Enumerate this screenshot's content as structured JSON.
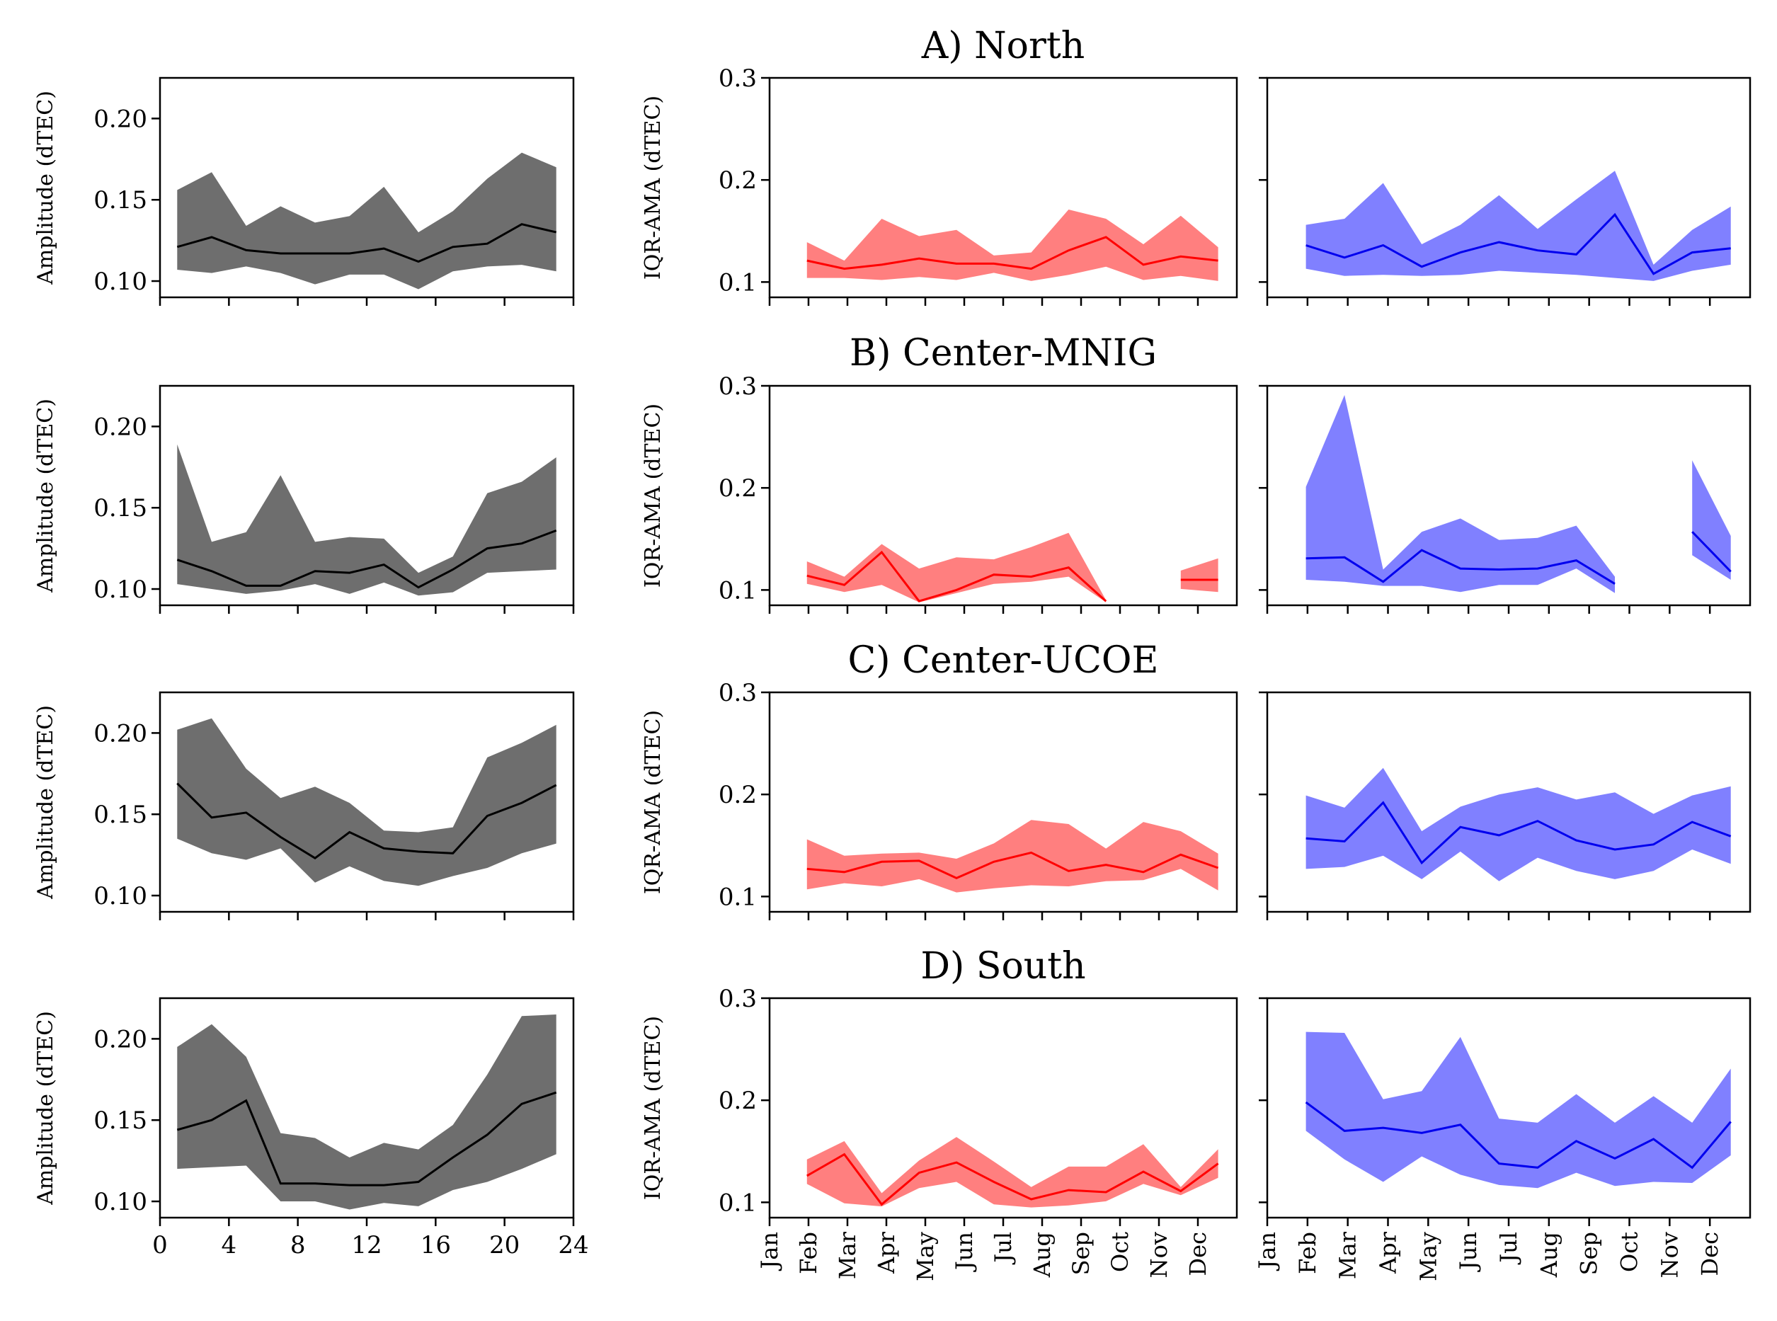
{
  "chart_data": {
    "type": "area",
    "description_series": "Each panel: line = median, shaded band = interquartile range",
    "left_axes": {
      "ylabel": "Amplitude (dTEC)",
      "yticks": [
        "0.10",
        "0.15",
        "0.20"
      ],
      "ylim": [
        0.09,
        0.225
      ],
      "xlim": [
        0,
        24
      ],
      "xticks": [
        "0",
        "4",
        "8",
        "12",
        "16",
        "20",
        "24"
      ],
      "x": [
        1,
        3,
        5,
        7,
        9,
        11,
        13,
        15,
        17,
        19,
        21,
        23
      ],
      "color": "#000000",
      "fill": "#6e6e6e"
    },
    "month_axes": {
      "ylabel": "IQR-AMA (dTEC)",
      "yticks": [
        "0.1",
        "0.2",
        "0.3"
      ],
      "ylim": [
        0.085,
        0.3
      ],
      "months": [
        "Jan",
        "Feb",
        "Mar",
        "Apr",
        "May",
        "Jun",
        "Jul",
        "Aug",
        "Sep",
        "Oct",
        "Nov",
        "Dec"
      ],
      "x": [
        1,
        2,
        3,
        4,
        5,
        6,
        7,
        8,
        9,
        10,
        11,
        12
      ],
      "middle_color": "#ff0000",
      "middle_fill": "#ff7f7f",
      "right_color": "#0000ee",
      "right_fill": "#8080ff"
    },
    "rows": [
      {
        "title": "A) North",
        "left": {
          "median": [
            0.121,
            0.127,
            0.119,
            0.117,
            0.117,
            0.117,
            0.12,
            0.112,
            0.121,
            0.123,
            0.135,
            0.13
          ],
          "q1": [
            0.107,
            0.105,
            0.109,
            0.105,
            0.098,
            0.104,
            0.104,
            0.095,
            0.106,
            0.109,
            0.11,
            0.106
          ],
          "q3": [
            0.156,
            0.167,
            0.134,
            0.146,
            0.136,
            0.14,
            0.158,
            0.13,
            0.143,
            0.163,
            0.179,
            0.17
          ]
        },
        "middle": {
          "median": [
            0.121,
            0.113,
            0.117,
            0.123,
            0.118,
            0.118,
            0.113,
            0.131,
            0.144,
            0.117,
            0.125,
            0.121
          ],
          "q1": [
            0.104,
            0.104,
            0.102,
            0.105,
            0.102,
            0.109,
            0.101,
            0.107,
            0.115,
            0.102,
            0.106,
            0.101
          ],
          "q3": [
            0.139,
            0.121,
            0.162,
            0.145,
            0.151,
            0.126,
            0.129,
            0.171,
            0.162,
            0.137,
            0.165,
            0.134
          ]
        },
        "right": {
          "median": [
            0.136,
            0.124,
            0.136,
            0.115,
            0.129,
            0.139,
            0.131,
            0.127,
            0.166,
            0.108,
            0.129,
            0.133
          ],
          "q1": [
            0.113,
            0.106,
            0.107,
            0.106,
            0.107,
            0.111,
            0.109,
            0.107,
            0.104,
            0.101,
            0.111,
            0.117
          ],
          "q3": [
            0.156,
            0.162,
            0.197,
            0.137,
            0.156,
            0.185,
            0.152,
            0.181,
            0.209,
            0.117,
            0.151,
            0.174
          ]
        }
      },
      {
        "title": "B) Center-MNIG",
        "left": {
          "median": [
            0.118,
            0.111,
            0.102,
            0.102,
            0.111,
            0.11,
            0.115,
            0.101,
            0.112,
            0.125,
            0.128,
            0.136
          ],
          "q1": [
            0.103,
            0.1,
            0.097,
            0.099,
            0.103,
            0.097,
            0.104,
            0.096,
            0.098,
            0.11,
            0.111,
            0.112
          ],
          "q3": [
            0.189,
            0.129,
            0.135,
            0.17,
            0.129,
            0.132,
            0.131,
            0.11,
            0.12,
            0.159,
            0.166,
            0.181
          ]
        },
        "middle": {
          "median": [
            0.114,
            0.105,
            0.137,
            0.089,
            0.1,
            0.115,
            0.113,
            0.122,
            0.089,
            null,
            0.11,
            0.11
          ],
          "q1": [
            0.106,
            0.098,
            0.105,
            0.088,
            0.097,
            0.106,
            0.108,
            0.113,
            0.088,
            null,
            0.101,
            0.098
          ],
          "q3": [
            0.128,
            0.113,
            0.145,
            0.121,
            0.132,
            0.13,
            0.142,
            0.156,
            0.09,
            null,
            0.119,
            0.131
          ]
        },
        "right": {
          "median": [
            0.131,
            0.132,
            0.108,
            0.139,
            0.121,
            0.12,
            0.121,
            0.129,
            0.106,
            null,
            0.157,
            0.118
          ],
          "q1": [
            0.11,
            0.108,
            0.104,
            0.104,
            0.098,
            0.105,
            0.105,
            0.121,
            0.097,
            null,
            0.134,
            0.11
          ],
          "q3": [
            0.201,
            0.291,
            0.12,
            0.157,
            0.17,
            0.149,
            0.151,
            0.163,
            0.113,
            null,
            0.227,
            0.153
          ]
        }
      },
      {
        "title": "C) Center-UCOE",
        "left": {
          "median": [
            0.169,
            0.148,
            0.151,
            0.136,
            0.123,
            0.139,
            0.129,
            0.127,
            0.126,
            0.149,
            0.157,
            0.168
          ],
          "q1": [
            0.135,
            0.126,
            0.122,
            0.129,
            0.108,
            0.118,
            0.109,
            0.106,
            0.112,
            0.117,
            0.126,
            0.132
          ],
          "q3": [
            0.202,
            0.209,
            0.178,
            0.16,
            0.167,
            0.157,
            0.14,
            0.139,
            0.142,
            0.185,
            0.194,
            0.205
          ]
        },
        "middle": {
          "median": [
            0.127,
            0.124,
            0.134,
            0.135,
            0.118,
            0.134,
            0.143,
            0.125,
            0.131,
            0.124,
            0.141,
            0.128
          ],
          "q1": [
            0.107,
            0.113,
            0.11,
            0.117,
            0.104,
            0.108,
            0.111,
            0.11,
            0.115,
            0.116,
            0.127,
            0.106
          ],
          "q3": [
            0.156,
            0.14,
            0.142,
            0.143,
            0.137,
            0.152,
            0.175,
            0.171,
            0.147,
            0.173,
            0.164,
            0.142
          ]
        },
        "right": {
          "median": [
            0.157,
            0.154,
            0.192,
            0.133,
            0.168,
            0.16,
            0.174,
            0.155,
            0.146,
            0.151,
            0.173,
            0.159
          ],
          "q1": [
            0.127,
            0.129,
            0.14,
            0.117,
            0.144,
            0.115,
            0.138,
            0.125,
            0.117,
            0.125,
            0.146,
            0.132
          ],
          "q3": [
            0.199,
            0.187,
            0.226,
            0.164,
            0.188,
            0.2,
            0.207,
            0.195,
            0.202,
            0.181,
            0.199,
            0.208
          ]
        }
      },
      {
        "title": "D) South",
        "left": {
          "median": [
            0.144,
            0.15,
            0.162,
            0.111,
            0.111,
            0.11,
            0.11,
            0.112,
            0.127,
            0.141,
            0.16,
            0.167
          ],
          "q1": [
            0.12,
            0.121,
            0.122,
            0.1,
            0.1,
            0.095,
            0.099,
            0.097,
            0.107,
            0.112,
            0.12,
            0.129
          ],
          "q3": [
            0.195,
            0.209,
            0.189,
            0.142,
            0.139,
            0.127,
            0.136,
            0.132,
            0.147,
            0.178,
            0.214,
            0.215
          ]
        },
        "middle": {
          "median": [
            0.126,
            0.147,
            0.098,
            0.129,
            0.139,
            0.12,
            0.103,
            0.112,
            0.11,
            0.13,
            0.111,
            0.138
          ],
          "q1": [
            0.118,
            0.099,
            0.096,
            0.114,
            0.12,
            0.098,
            0.095,
            0.097,
            0.101,
            0.118,
            0.107,
            0.124
          ],
          "q3": [
            0.142,
            0.16,
            0.109,
            0.141,
            0.164,
            0.14,
            0.115,
            0.135,
            0.135,
            0.157,
            0.115,
            0.152
          ]
        },
        "right": {
          "median": [
            0.198,
            0.17,
            0.173,
            0.168,
            0.176,
            0.138,
            0.134,
            0.16,
            0.143,
            0.162,
            0.134,
            0.179
          ],
          "q1": [
            0.17,
            0.142,
            0.12,
            0.145,
            0.127,
            0.117,
            0.114,
            0.129,
            0.116,
            0.12,
            0.119,
            0.146
          ],
          "q3": [
            0.267,
            0.266,
            0.201,
            0.209,
            0.262,
            0.182,
            0.178,
            0.206,
            0.178,
            0.204,
            0.178,
            0.231
          ]
        }
      }
    ]
  }
}
